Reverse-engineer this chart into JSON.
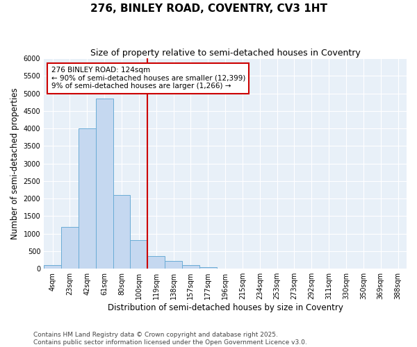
{
  "title_line1": "276, BINLEY ROAD, COVENTRY, CV3 1HT",
  "title_line2": "Size of property relative to semi-detached houses in Coventry",
  "xlabel": "Distribution of semi-detached houses by size in Coventry",
  "ylabel": "Number of semi-detached properties",
  "bin_labels": [
    "4sqm",
    "23sqm",
    "42sqm",
    "61sqm",
    "80sqm",
    "100sqm",
    "119sqm",
    "138sqm",
    "157sqm",
    "177sqm",
    "196sqm",
    "215sqm",
    "234sqm",
    "253sqm",
    "273sqm",
    "292sqm",
    "311sqm",
    "330sqm",
    "350sqm",
    "369sqm",
    "388sqm"
  ],
  "bar_heights": [
    100,
    1200,
    4000,
    4850,
    2100,
    820,
    370,
    230,
    100,
    50,
    0,
    0,
    0,
    0,
    0,
    0,
    0,
    0,
    0,
    0,
    0
  ],
  "bar_color": "#c5d8f0",
  "bar_edge_color": "#6aacd6",
  "background_color": "#e8f0f8",
  "grid_color": "#ffffff",
  "vline_color": "#cc0000",
  "annotation_text": "276 BINLEY ROAD: 124sqm\n← 90% of semi-detached houses are smaller (12,399)\n9% of semi-detached houses are larger (1,266) →",
  "annotation_box_color": "#ffffff",
  "annotation_box_edge": "#cc0000",
  "ylim": [
    0,
    6000
  ],
  "yticks": [
    0,
    500,
    1000,
    1500,
    2000,
    2500,
    3000,
    3500,
    4000,
    4500,
    5000,
    5500,
    6000
  ],
  "footnote": "Contains HM Land Registry data © Crown copyright and database right 2025.\nContains public sector information licensed under the Open Government Licence v3.0.",
  "title_fontsize": 11,
  "subtitle_fontsize": 9,
  "axis_label_fontsize": 8.5,
  "tick_fontsize": 7,
  "footnote_fontsize": 6.5,
  "annot_fontsize": 7.5
}
